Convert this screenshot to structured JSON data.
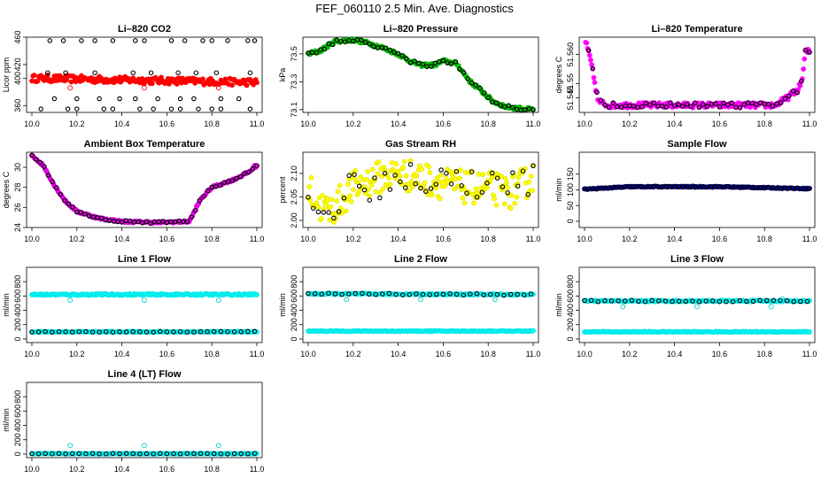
{
  "page": {
    "title": "FEF_060110  2.5 Min. Ave. Diagnostics"
  },
  "chart_data": [
    {
      "id": "co2",
      "type": "scatter",
      "title": "Li–820 CO2",
      "ylabel": "Licor ppm",
      "xlim": [
        10.0,
        11.0
      ],
      "ylim": [
        350,
        460
      ],
      "xticks": [
        "10.0",
        "10.2",
        "10.4",
        "10.6",
        "10.8",
        "11.0"
      ],
      "yticks": [
        "360",
        "400",
        "420",
        "460"
      ],
      "series": [
        {
          "name": "points",
          "color": "#ff0000",
          "fill": "#ff0000",
          "generator": "band",
          "params": {
            "y": 400,
            "spread": 5,
            "drift": -6
          }
        },
        {
          "name": "averages",
          "color": "#000000",
          "generator": "list",
          "points": [
            [
              10.04,
              355
            ],
            [
              10.16,
              355
            ],
            [
              10.2,
              355
            ],
            [
              10.32,
              355
            ],
            [
              10.36,
              355
            ],
            [
              10.48,
              355
            ],
            [
              10.54,
              355
            ],
            [
              10.62,
              355
            ],
            [
              10.66,
              355
            ],
            [
              10.74,
              355
            ],
            [
              10.8,
              355
            ],
            [
              10.84,
              355
            ],
            [
              10.97,
              355
            ],
            [
              10.07,
              408
            ],
            [
              10.15,
              408
            ],
            [
              10.28,
              408
            ],
            [
              10.45,
              408
            ],
            [
              10.53,
              408
            ],
            [
              10.65,
              408
            ],
            [
              10.73,
              408
            ],
            [
              10.82,
              408
            ],
            [
              10.97,
              408
            ],
            [
              10.1,
              370
            ],
            [
              10.2,
              370
            ],
            [
              10.3,
              370
            ],
            [
              10.39,
              370
            ],
            [
              10.46,
              370
            ],
            [
              10.56,
              370
            ],
            [
              10.66,
              370
            ],
            [
              10.72,
              370
            ],
            [
              10.84,
              370
            ],
            [
              10.92,
              370
            ],
            [
              10.08,
              455
            ],
            [
              10.14,
              455
            ],
            [
              10.22,
              455
            ],
            [
              10.28,
              455
            ],
            [
              10.36,
              455
            ],
            [
              10.46,
              455
            ],
            [
              10.5,
              455
            ],
            [
              10.62,
              455
            ],
            [
              10.68,
              455
            ],
            [
              10.76,
              455
            ],
            [
              10.8,
              455
            ],
            [
              10.87,
              455
            ],
            [
              10.96,
              455
            ],
            [
              10.99,
              455
            ]
          ]
        },
        {
          "name": "outliers",
          "color": "#ff0000",
          "generator": "list",
          "points": [
            [
              10.17,
              386
            ],
            [
              10.5,
              386
            ],
            [
              10.83,
              386
            ]
          ]
        }
      ]
    },
    {
      "id": "pressure",
      "type": "scatter",
      "title": "Li–820 Pressure",
      "ylabel": "kPa",
      "xlim": [
        10.0,
        11.0
      ],
      "ylim": [
        73.08,
        73.62
      ],
      "xticks": [
        "10.0",
        "10.2",
        "10.4",
        "10.6",
        "10.8",
        "11.0"
      ],
      "yticks": [
        "73.1",
        "73.3",
        "73.5"
      ],
      "series": [
        {
          "name": "points",
          "color": "#00aa00",
          "fill": "#00cc00",
          "generator": "curve",
          "params": {
            "knots": [
              [
                10.0,
                73.5
              ],
              [
                10.05,
                73.52
              ],
              [
                10.12,
                73.59
              ],
              [
                10.2,
                73.6
              ],
              [
                10.26,
                73.58
              ],
              [
                10.32,
                73.55
              ],
              [
                10.4,
                73.5
              ],
              [
                10.45,
                73.45
              ],
              [
                10.5,
                73.42
              ],
              [
                10.56,
                73.42
              ],
              [
                10.6,
                73.45
              ],
              [
                10.66,
                73.43
              ],
              [
                10.72,
                73.3
              ],
              [
                10.76,
                73.25
              ],
              [
                10.82,
                73.16
              ],
              [
                10.88,
                73.12
              ],
              [
                10.93,
                73.11
              ],
              [
                11.0,
                73.1
              ]
            ],
            "spread": 0.012
          }
        },
        {
          "name": "averages",
          "color": "#000000",
          "generator": "sample",
          "params": {
            "from": "points",
            "every": 4
          }
        }
      ]
    },
    {
      "id": "licor_temp",
      "type": "scatter",
      "title": "Li–820 Temperature",
      "ylabel": "degrees C",
      "xlim": [
        10.0,
        11.0
      ],
      "ylim": [
        51.54,
        51.566
      ],
      "xticks": [
        "10.0",
        "10.2",
        "10.4",
        "10.6",
        "10.8",
        "11.0"
      ],
      "yticks": [
        "51.545",
        "51.55",
        "51.560"
      ],
      "series": [
        {
          "name": "points",
          "color": "#ff00ff",
          "fill": "#ff00ff",
          "generator": "curve",
          "params": {
            "knots": [
              [
                10.0,
                51.566
              ],
              [
                10.03,
                51.557
              ],
              [
                10.06,
                51.544
              ],
              [
                10.1,
                51.5425
              ],
              [
                10.5,
                51.5425
              ],
              [
                10.85,
                51.5425
              ],
              [
                10.9,
                51.545
              ],
              [
                10.95,
                51.548
              ],
              [
                10.97,
                51.552
              ],
              [
                10.98,
                51.561
              ]
            ],
            "spread": 0.0009
          }
        },
        {
          "name": "averages",
          "color": "#000000",
          "generator": "sample",
          "params": {
            "from": "points",
            "every": 4
          }
        }
      ]
    },
    {
      "id": "box_temp",
      "type": "scatter",
      "title": "Ambient Box Temperature",
      "ylabel": "degrees C",
      "xlim": [
        10.0,
        11.0
      ],
      "ylim": [
        24,
        31.5
      ],
      "xticks": [
        "10.0",
        "10.2",
        "10.4",
        "10.6",
        "10.8",
        "11.0"
      ],
      "yticks": [
        "24",
        "26",
        "28",
        "30"
      ],
      "series": [
        {
          "name": "points",
          "color": "#cc00cc",
          "fill": "#ff00ff",
          "generator": "curve",
          "params": {
            "knots": [
              [
                10.0,
                31.2
              ],
              [
                10.05,
                30.2
              ],
              [
                10.1,
                28.2
              ],
              [
                10.15,
                26.6
              ],
              [
                10.2,
                25.6
              ],
              [
                10.3,
                24.9
              ],
              [
                10.4,
                24.6
              ],
              [
                10.55,
                24.5
              ],
              [
                10.7,
                24.6
              ],
              [
                10.75,
                26.8
              ],
              [
                10.8,
                28.0
              ],
              [
                10.9,
                28.8
              ],
              [
                10.97,
                29.6
              ],
              [
                10.99,
                30.1
              ]
            ],
            "spread": 0.1
          }
        },
        {
          "name": "averages",
          "color": "#000000",
          "generator": "sample",
          "params": {
            "from": "points",
            "every": 4
          }
        }
      ]
    },
    {
      "id": "rh",
      "type": "scatter",
      "title": "Gas Stream RH",
      "ylabel": "percent",
      "xlim": [
        10.0,
        11.0
      ],
      "ylim": [
        1.985,
        2.145
      ],
      "xticks": [
        "10.0",
        "10.2",
        "10.4",
        "10.6",
        "10.8",
        "11.0"
      ],
      "yticks": [
        "2.00",
        "2.05",
        "2.10"
      ],
      "series": [
        {
          "name": "points",
          "color": "#e6e600",
          "fill": "#ffff00",
          "generator": "curve",
          "params": {
            "knots": [
              [
                10.0,
                2.07
              ],
              [
                10.05,
                2.03
              ],
              [
                10.1,
                2.02
              ],
              [
                10.2,
                2.07
              ],
              [
                10.3,
                2.09
              ],
              [
                10.4,
                2.1
              ],
              [
                10.5,
                2.09
              ],
              [
                10.6,
                2.08
              ],
              [
                10.7,
                2.07
              ],
              [
                10.8,
                2.07
              ],
              [
                10.9,
                2.06
              ],
              [
                11.0,
                2.09
              ]
            ],
            "spread": 0.035
          }
        },
        {
          "name": "averages",
          "color": "#000000",
          "generator": "sample",
          "params": {
            "from": "points",
            "every": 5,
            "spread": 0.012
          }
        }
      ]
    },
    {
      "id": "sample_flow",
      "type": "scatter",
      "title": "Sample Flow",
      "ylabel": "ml/min",
      "xlim": [
        10.0,
        11.0
      ],
      "ylim": [
        -20,
        220
      ],
      "xticks": [
        "10.0",
        "10.2",
        "10.4",
        "10.6",
        "10.8",
        "11.0"
      ],
      "yticks": [
        "0",
        "50",
        "100",
        "150"
      ],
      "series": [
        {
          "name": "points",
          "color": "#00008b",
          "fill": "#00008b",
          "generator": "curve",
          "params": {
            "knots": [
              [
                10.0,
                102
              ],
              [
                10.2,
                110
              ],
              [
                10.6,
                110
              ],
              [
                11.0,
                104
              ]
            ],
            "spread": 1.5
          }
        },
        {
          "name": "averages",
          "color": "#000000",
          "generator": "sample",
          "params": {
            "from": "points",
            "every": 4
          }
        }
      ]
    },
    {
      "id": "line1",
      "type": "scatter",
      "title": "Line 1 Flow",
      "ylabel": "ml/min",
      "xlim": [
        10.0,
        11.0
      ],
      "ylim": [
        -50,
        1000
      ],
      "xticks": [
        "10.0",
        "10.2",
        "10.4",
        "10.6",
        "10.8",
        "11.0"
      ],
      "yticks": [
        "0",
        "200",
        "400",
        "600",
        "800"
      ],
      "series": [
        {
          "name": "main",
          "color": "#00e5e5",
          "fill": "#00ffff",
          "generator": "band",
          "params": {
            "y": 620,
            "spread": 12,
            "drift": 0
          }
        },
        {
          "name": "low",
          "color": "#00e5e5",
          "fill": "#00ffff",
          "generator": "band",
          "params": {
            "y": 100,
            "spread": 6,
            "drift": 0
          }
        },
        {
          "name": "averages",
          "color": "#000000",
          "generator": "list",
          "points": "low-sample"
        },
        {
          "name": "outliers",
          "color": "#00cccc",
          "generator": "list",
          "points": [
            [
              10.17,
              540
            ],
            [
              10.5,
              540
            ],
            [
              10.83,
              540
            ]
          ]
        }
      ]
    },
    {
      "id": "line2",
      "type": "scatter",
      "title": "Line 2 Flow",
      "ylabel": "ml/min",
      "xlim": [
        10.0,
        11.0
      ],
      "ylim": [
        -50,
        1000
      ],
      "xticks": [
        "10.0",
        "10.2",
        "10.4",
        "10.6",
        "10.8",
        "11.0"
      ],
      "yticks": [
        "0",
        "200",
        "400",
        "600",
        "800"
      ],
      "series": [
        {
          "name": "main",
          "color": "#00e5e5",
          "fill": "#00ffff",
          "generator": "band",
          "params": {
            "y": 630,
            "spread": 10,
            "drift": -10
          }
        },
        {
          "name": "low",
          "color": "#00e5e5",
          "fill": "#00ffff",
          "generator": "band",
          "params": {
            "y": 110,
            "spread": 6,
            "drift": 0
          }
        },
        {
          "name": "averages",
          "color": "#000000",
          "generator": "list",
          "points": "main-sample"
        },
        {
          "name": "outliers",
          "color": "#00cccc",
          "generator": "list",
          "points": [
            [
              10.17,
              550
            ],
            [
              10.5,
              550
            ],
            [
              10.83,
              550
            ]
          ]
        }
      ]
    },
    {
      "id": "line3",
      "type": "scatter",
      "title": "Line 3 Flow",
      "ylabel": "ml/min",
      "xlim": [
        10.0,
        11.0
      ],
      "ylim": [
        -50,
        1000
      ],
      "xticks": [
        "10.0",
        "10.2",
        "10.4",
        "10.6",
        "10.8",
        "11.0"
      ],
      "yticks": [
        "0",
        "200",
        "400",
        "600",
        "800"
      ],
      "series": [
        {
          "name": "main",
          "color": "#00e5e5",
          "fill": "#00ffff",
          "generator": "band",
          "params": {
            "y": 530,
            "spread": 10,
            "drift": 0
          }
        },
        {
          "name": "low",
          "color": "#00e5e5",
          "fill": "#00ffff",
          "generator": "band",
          "params": {
            "y": 100,
            "spread": 6,
            "drift": 0
          }
        },
        {
          "name": "averages",
          "color": "#000000",
          "generator": "list",
          "points": "main-sample"
        },
        {
          "name": "outliers",
          "color": "#00cccc",
          "generator": "list",
          "points": [
            [
              10.17,
              450
            ],
            [
              10.5,
              450
            ],
            [
              10.83,
              450
            ],
            [
              10.88,
              560
            ]
          ]
        }
      ]
    },
    {
      "id": "line4",
      "type": "scatter",
      "title": "Line 4 (LT) Flow",
      "ylabel": "ml/min",
      "xlim": [
        10.0,
        11.0
      ],
      "ylim": [
        -50,
        1000
      ],
      "xticks": [
        "10.0",
        "10.2",
        "10.4",
        "10.6",
        "10.8",
        "11.0"
      ],
      "yticks": [
        "0",
        "200",
        "400",
        "600",
        "800"
      ],
      "series": [
        {
          "name": "low",
          "color": "#00e5e5",
          "fill": "#00ffff",
          "generator": "band",
          "params": {
            "y": 5,
            "spread": 4,
            "drift": 0
          }
        },
        {
          "name": "averages",
          "color": "#000000",
          "generator": "list",
          "points": "low-sample"
        },
        {
          "name": "outliers",
          "color": "#00cccc",
          "generator": "list",
          "points": [
            [
              10.17,
              120
            ],
            [
              10.5,
              120
            ],
            [
              10.83,
              120
            ]
          ]
        }
      ]
    }
  ]
}
